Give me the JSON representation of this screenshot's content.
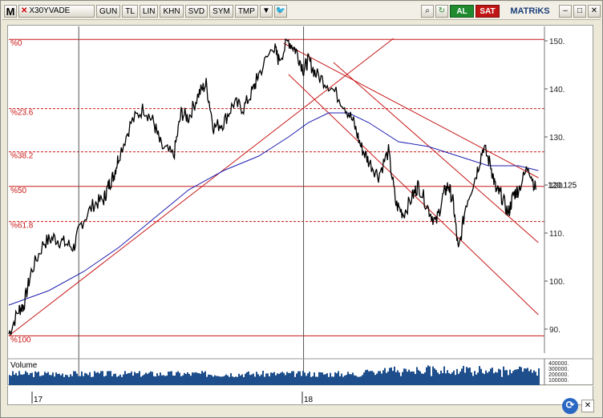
{
  "toolbar": {
    "logo": "M",
    "symbol": "X30YVADE",
    "buttons": [
      "GUN",
      "TL",
      "LIN",
      "KHN",
      "SVD",
      "SYM",
      "TMP"
    ],
    "buy_label": "AL",
    "sell_label": "SAT",
    "brand": "MATRiKS",
    "colors": {
      "buy": "#1f8a2e",
      "sell": "#c01515",
      "brand": "#1c3f7a"
    }
  },
  "chart_data": {
    "type": "line",
    "title": "X30YVADE",
    "ylim": [
      87,
      153
    ],
    "y_ticks": [
      "150.",
      "140.",
      "130.",
      "120.",
      "110.",
      "100.",
      "90."
    ],
    "last_price": "120.125",
    "x_tick_labels": [
      "17",
      "18"
    ],
    "fibonacci_levels": [
      {
        "label": "%0",
        "value": 150.3
      },
      {
        "label": "%23.6",
        "value": 135.9
      },
      {
        "label": "%38.2",
        "value": 126.9
      },
      {
        "label": "%50",
        "value": 119.7
      },
      {
        "label": "%61.8",
        "value": 112.4
      },
      {
        "label": "%100",
        "value": 88.6
      }
    ],
    "price_series": {
      "name": "price",
      "points": [
        [
          0,
          89
        ],
        [
          0.02,
          94
        ],
        [
          0.03,
          95
        ],
        [
          0.045,
          102
        ],
        [
          0.07,
          108
        ],
        [
          0.09,
          109
        ],
        [
          0.11,
          108
        ],
        [
          0.13,
          107
        ],
        [
          0.145,
          112
        ],
        [
          0.17,
          116
        ],
        [
          0.19,
          117
        ],
        [
          0.2,
          120
        ],
        [
          0.21,
          122
        ],
        [
          0.22,
          126
        ],
        [
          0.245,
          133
        ],
        [
          0.27,
          136
        ],
        [
          0.29,
          133
        ],
        [
          0.305,
          128
        ],
        [
          0.33,
          126
        ],
        [
          0.345,
          135
        ],
        [
          0.36,
          134
        ],
        [
          0.38,
          139
        ],
        [
          0.395,
          141
        ],
        [
          0.41,
          132
        ],
        [
          0.43,
          133
        ],
        [
          0.45,
          137
        ],
        [
          0.47,
          136
        ],
        [
          0.49,
          140
        ],
        [
          0.5,
          143
        ],
        [
          0.53,
          149
        ],
        [
          0.54,
          146
        ],
        [
          0.56,
          150
        ],
        [
          0.575,
          148
        ],
        [
          0.59,
          144
        ],
        [
          0.6,
          146
        ],
        [
          0.615,
          143
        ],
        [
          0.64,
          141
        ],
        [
          0.67,
          137
        ],
        [
          0.69,
          133
        ],
        [
          0.705,
          128
        ],
        [
          0.72,
          125
        ],
        [
          0.74,
          122
        ],
        [
          0.76,
          127
        ],
        [
          0.775,
          116
        ],
        [
          0.79,
          114
        ],
        [
          0.81,
          118
        ],
        [
          0.82,
          120
        ],
        [
          0.84,
          115
        ],
        [
          0.855,
          112
        ],
        [
          0.87,
          118
        ],
        [
          0.88,
          120
        ],
        [
          0.89,
          116
        ],
        [
          0.9,
          106
        ],
        [
          0.915,
          116
        ],
        [
          0.935,
          122
        ],
        [
          0.95,
          128
        ],
        [
          0.965,
          124
        ],
        [
          0.975,
          119
        ],
        [
          0.985,
          118
        ],
        [
          1.0,
          114
        ],
        [
          1.01,
          118
        ],
        [
          1.02,
          119
        ],
        [
          1.04,
          124
        ],
        [
          1.055,
          119
        ]
      ]
    },
    "moving_average": {
      "color": "#1f1fb0",
      "points": [
        [
          0,
          95
        ],
        [
          0.08,
          98
        ],
        [
          0.15,
          102
        ],
        [
          0.22,
          107
        ],
        [
          0.29,
          113
        ],
        [
          0.36,
          119
        ],
        [
          0.43,
          123
        ],
        [
          0.5,
          126
        ],
        [
          0.56,
          130
        ],
        [
          0.6,
          133
        ],
        [
          0.64,
          135
        ],
        [
          0.68,
          135
        ],
        [
          0.72,
          133
        ],
        [
          0.78,
          129
        ],
        [
          0.84,
          128
        ],
        [
          0.9,
          126
        ],
        [
          0.96,
          124
        ],
        [
          1.02,
          124
        ],
        [
          1.06,
          123
        ]
      ]
    },
    "trendlines": [
      {
        "from": [
          0,
          88.6
        ],
        "to": [
          0.77,
          150.5
        ]
      },
      {
        "from": [
          0.55,
          149.5
        ],
        "to": [
          1.06,
          121.5
        ]
      },
      {
        "from": [
          0.56,
          143
        ],
        "to": [
          1.06,
          93
        ]
      },
      {
        "from": [
          0.65,
          145.5
        ],
        "to": [
          1.06,
          108
        ]
      }
    ],
    "vertical_markers": [
      0.14,
      0.59
    ],
    "volume": {
      "label": "Volume",
      "y_ticks": [
        "400000.",
        "300000.",
        "200000.",
        "100000."
      ],
      "color": "#1e4f8c"
    },
    "colors": {
      "price": "#000000",
      "fib": "#c81818",
      "trend": "#c81818",
      "ma": "#1f1fb0",
      "volume": "#1e4f8c"
    }
  }
}
